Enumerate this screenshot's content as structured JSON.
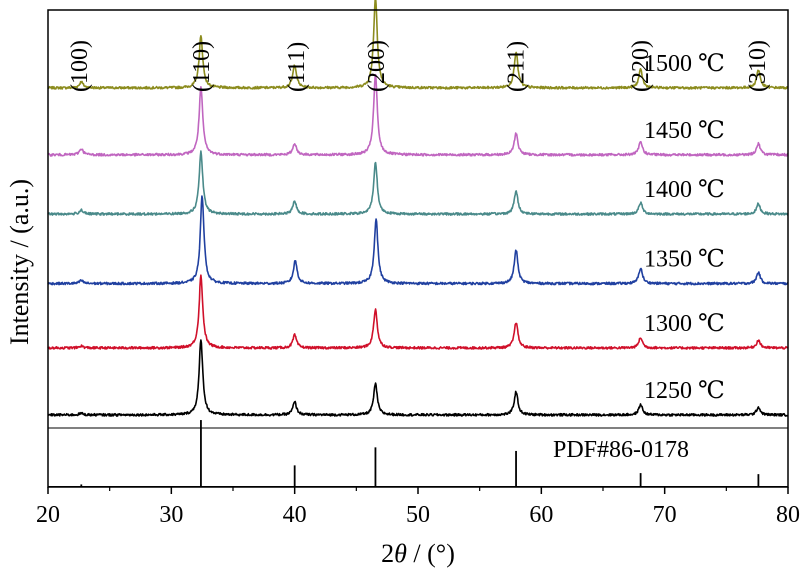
{
  "chart_data": {
    "type": "line",
    "xlabel_prefix": "2",
    "xlabel_symbol": "θ",
    "xlabel_unit": " / (°)",
    "ylabel": "Intensity / (a.u.)",
    "xlim": [
      20,
      80
    ],
    "x_ticks": [
      20,
      30,
      40,
      50,
      60,
      70,
      80
    ],
    "x_tick_labels": [
      "20",
      "30",
      "40",
      "50",
      "60",
      "70",
      "80"
    ],
    "minor_x_step": 5,
    "grid": false,
    "peak_width_deg": 0.18,
    "hkl_labels": [
      {
        "text": "(100)",
        "x": 22.5
      },
      {
        "text": "(110)",
        "x": 32.4
      },
      {
        "text": "(111)",
        "x": 40.1
      },
      {
        "text": "(200)",
        "x": 46.6
      },
      {
        "text": "(211)",
        "x": 57.9
      },
      {
        "text": "(220)",
        "x": 68.0
      },
      {
        "text": "(310)",
        "x": 77.5
      }
    ],
    "series": [
      {
        "name": "1500 ℃",
        "color": "#8c8c1e",
        "baseline": 7.75,
        "peaks": [
          [
            22.7,
            0.12
          ],
          [
            32.4,
            1.0
          ],
          [
            40.0,
            0.45
          ],
          [
            46.55,
            1.75
          ],
          [
            57.95,
            0.7
          ],
          [
            68.05,
            0.35
          ],
          [
            77.6,
            0.35
          ]
        ]
      },
      {
        "name": "1450 ℃",
        "color": "#c066c0",
        "baseline": 6.45,
        "peaks": [
          [
            22.7,
            0.12
          ],
          [
            32.4,
            1.3
          ],
          [
            40.0,
            0.22
          ],
          [
            46.55,
            1.55
          ],
          [
            57.95,
            0.42
          ],
          [
            68.05,
            0.25
          ],
          [
            77.6,
            0.22
          ]
        ]
      },
      {
        "name": "1400 ℃",
        "color": "#4a8a8a",
        "baseline": 5.3,
        "peaks": [
          [
            22.7,
            0.08
          ],
          [
            32.4,
            1.2
          ],
          [
            40.0,
            0.25
          ],
          [
            46.55,
            1.0
          ],
          [
            57.95,
            0.45
          ],
          [
            68.05,
            0.22
          ],
          [
            77.6,
            0.2
          ]
        ]
      },
      {
        "name": "1350 ℃",
        "color": "#2040a0",
        "baseline": 3.95,
        "peaks": [
          [
            22.7,
            0.06
          ],
          [
            32.5,
            1.7
          ],
          [
            40.05,
            0.45
          ],
          [
            46.6,
            1.25
          ],
          [
            57.95,
            0.65
          ],
          [
            68.05,
            0.3
          ],
          [
            77.6,
            0.22
          ]
        ]
      },
      {
        "name": "1300 ℃",
        "color": "#d0102a",
        "baseline": 2.7,
        "peaks": [
          [
            22.7,
            0.04
          ],
          [
            32.4,
            1.4
          ],
          [
            40.0,
            0.25
          ],
          [
            46.55,
            0.75
          ],
          [
            57.95,
            0.5
          ],
          [
            68.05,
            0.2
          ],
          [
            77.6,
            0.15
          ]
        ]
      },
      {
        "name": "1250 ℃",
        "color": "#000000",
        "baseline": 1.4,
        "peaks": [
          [
            22.7,
            0.03
          ],
          [
            32.4,
            1.45
          ],
          [
            40.0,
            0.25
          ],
          [
            46.55,
            0.6
          ],
          [
            57.95,
            0.45
          ],
          [
            68.05,
            0.2
          ],
          [
            77.6,
            0.15
          ]
        ]
      }
    ],
    "reference": {
      "name": "PDF#86-0178",
      "baseline": 0.0,
      "lines": [
        [
          22.7,
          0.05
        ],
        [
          32.4,
          1.3
        ],
        [
          40.0,
          0.42
        ],
        [
          46.55,
          0.77
        ],
        [
          57.95,
          0.7
        ],
        [
          68.05,
          0.27
        ],
        [
          77.6,
          0.25
        ]
      ]
    }
  }
}
